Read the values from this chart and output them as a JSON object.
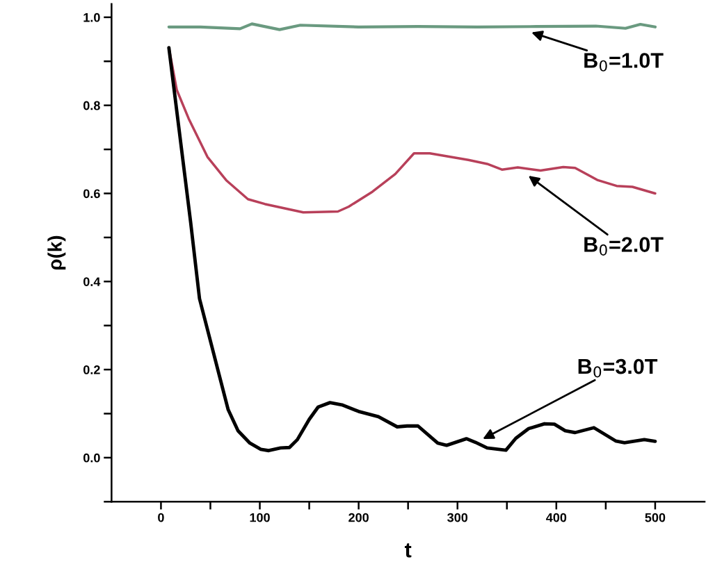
{
  "chart_data": {
    "type": "line",
    "xlabel": "t",
    "ylabel": "ρ(k)",
    "xlim": [
      -50,
      550
    ],
    "ylim": [
      -0.1,
      1.03
    ],
    "xticks": [
      0,
      {
        "value": 50,
        "label": null
      },
      100,
      {
        "value": 150,
        "label": null
      },
      200,
      {
        "value": 250,
        "label": null
      },
      300,
      {
        "value": 350,
        "label": null
      },
      400,
      {
        "value": 450,
        "label": null
      },
      500
    ],
    "yticks": [
      {
        "value": -0.1,
        "label": null
      },
      {
        "value": 0,
        "label": "0.0"
      },
      {
        "value": 0.1,
        "label": null
      },
      0.2,
      {
        "value": 0.3,
        "label": null
      },
      0.4,
      {
        "value": 0.5,
        "label": null
      },
      0.6,
      {
        "value": 0.7,
        "label": null
      },
      0.8,
      {
        "value": 0.9,
        "label": null
      },
      {
        "value": 1.0,
        "label": "1.0"
      }
    ],
    "grid": false,
    "legend": false,
    "marker": "none",
    "line_style": "solid",
    "series": [
      {
        "color": "#6a9a80",
        "x": [
          8,
          40,
          80,
          92,
          120,
          141,
          200,
          260,
          320,
          380,
          440,
          470,
          485,
          500
        ],
        "values": [
          0.978,
          0.978,
          0.974,
          0.985,
          0.972,
          0.982,
          0.978,
          0.979,
          0.978,
          0.979,
          0.98,
          0.975,
          0.984,
          0.978
        ]
      },
      {
        "color": "#b8405a",
        "x": [
          8,
          16,
          28,
          47,
          66,
          88,
          105,
          144,
          179,
          190,
          214,
          237,
          256,
          272,
          311,
          330,
          345,
          361,
          384,
          407,
          419,
          442,
          461,
          477,
          500
        ],
        "values": [
          0.931,
          0.835,
          0.77,
          0.683,
          0.63,
          0.587,
          0.576,
          0.557,
          0.559,
          0.57,
          0.604,
          0.644,
          0.691,
          0.691,
          0.676,
          0.667,
          0.654,
          0.659,
          0.652,
          0.66,
          0.658,
          0.63,
          0.617,
          0.615,
          0.6
        ]
      },
      {
        "color": "#000000",
        "x": [
          8,
          30,
          39,
          59,
          68,
          78,
          90,
          101,
          109,
          121,
          130,
          138,
          150,
          159,
          171,
          183,
          200,
          220,
          239,
          249,
          260,
          280,
          289,
          309,
          318,
          330,
          349,
          359,
          372,
          388,
          398,
          409,
          419,
          438,
          460,
          469,
          489,
          500
        ],
        "values": [
          0.931,
          0.535,
          0.361,
          0.187,
          0.109,
          0.061,
          0.033,
          0.019,
          0.016,
          0.022,
          0.023,
          0.041,
          0.087,
          0.115,
          0.125,
          0.12,
          0.105,
          0.093,
          0.07,
          0.072,
          0.072,
          0.033,
          0.028,
          0.043,
          0.035,
          0.022,
          0.017,
          0.044,
          0.066,
          0.077,
          0.076,
          0.061,
          0.057,
          0.068,
          0.038,
          0.034,
          0.041,
          0.037
        ]
      }
    ],
    "annotations": [
      "B$_{0}$=1.0T",
      "B$_{0}$=2.0T",
      "B$_{0}$=3.0T"
    ]
  }
}
